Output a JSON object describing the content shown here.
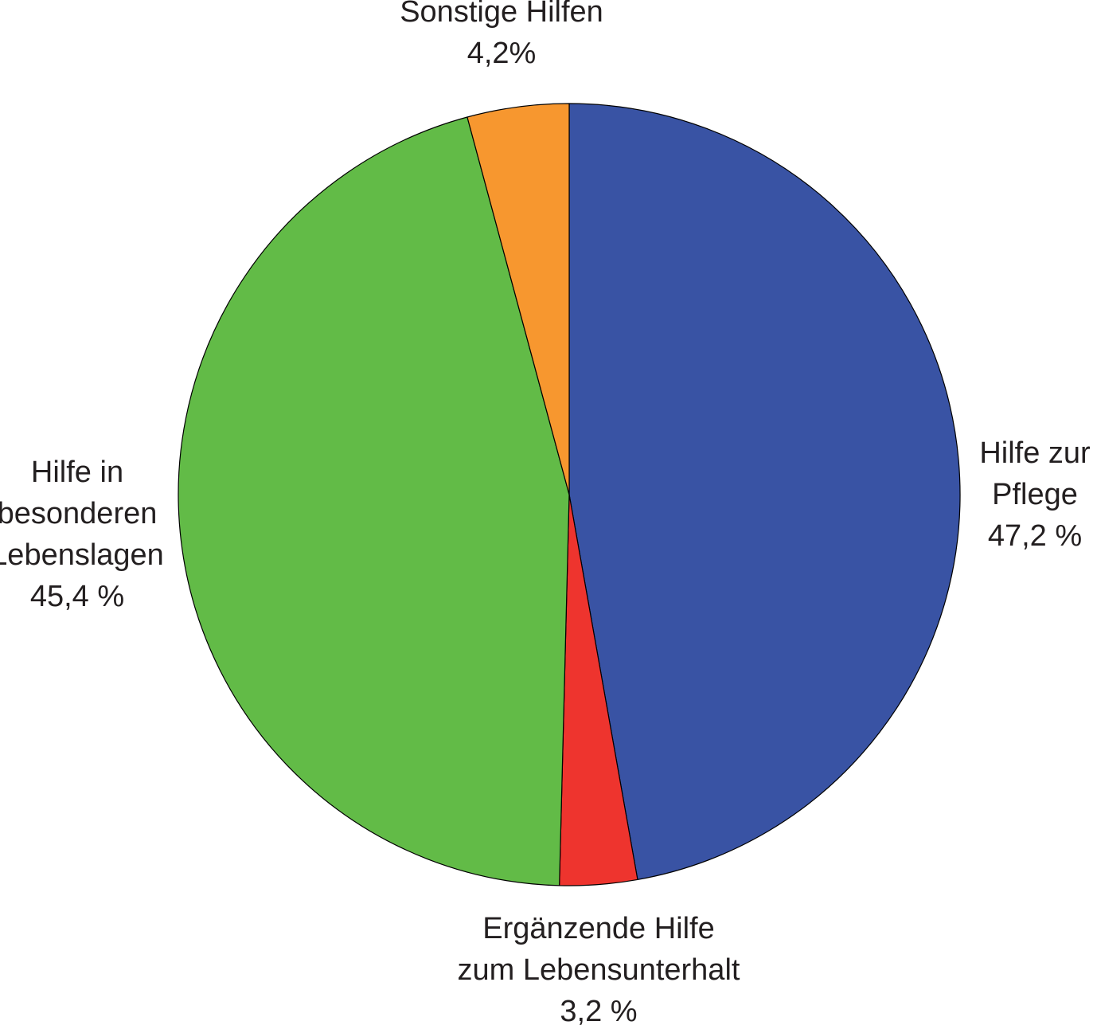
{
  "chart_data": {
    "type": "pie",
    "unit": "%",
    "start": "top (12 o'clock)",
    "direction": "clockwise",
    "slices": [
      {
        "label_lines": [
          "Hilfe zur",
          "Pflege"
        ],
        "value": 47.2,
        "value_label": "47,2 %",
        "color": "#3953a4"
      },
      {
        "label_lines": [
          "Ergänzende Hilfe",
          "zum Lebensunterhalt"
        ],
        "value": 3.2,
        "value_label": "3,2 %",
        "color": "#ee342e"
      },
      {
        "label_lines": [
          "Hilfe in",
          "besonderen",
          "Lebenslagen"
        ],
        "value": 45.4,
        "value_label": "45,4 %",
        "color": "#62bb47"
      },
      {
        "label_lines": [
          "Sonstige Hilfen"
        ],
        "value": 4.2,
        "value_label": "4,2%",
        "color": "#f7972f"
      }
    ],
    "slice_outline_color": "#000000"
  }
}
